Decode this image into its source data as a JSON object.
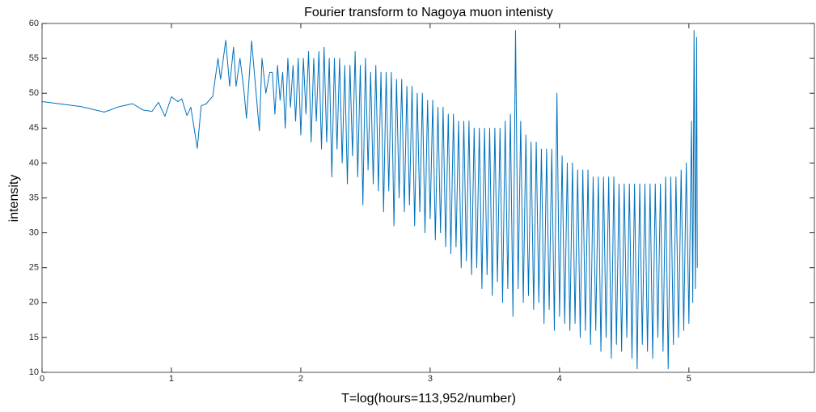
{
  "chart_data": {
    "type": "line",
    "title": "Fourier transform to Nagoya muon intenisty",
    "x_label": "T=log(hours=113,952/number)",
    "y_label": "intensity",
    "xlim": [
      0,
      5.97
    ],
    "ylim": [
      10,
      60
    ],
    "xticks": [
      0,
      1,
      2,
      3,
      4,
      5
    ],
    "yticks": [
      10,
      15,
      20,
      25,
      30,
      35,
      40,
      45,
      50,
      55,
      60
    ],
    "grid": false,
    "x": [
      0,
      0.3,
      0.48,
      0.6,
      0.7,
      0.78,
      0.85,
      0.9,
      0.95,
      1.0,
      1.05,
      1.08,
      1.12,
      1.15,
      1.2,
      1.23,
      1.27,
      1.32,
      1.36,
      1.38,
      1.42,
      1.45,
      1.48,
      1.5,
      1.53,
      1.56,
      1.58,
      1.6,
      1.62,
      1.65,
      1.68,
      1.7,
      1.73,
      1.76,
      1.78,
      1.8,
      1.82,
      1.84,
      1.86,
      1.88,
      1.9,
      1.92,
      1.94,
      1.96,
      1.98,
      2.0,
      2.02,
      2.04,
      2.06,
      2.08,
      2.1,
      2.12,
      2.14,
      2.16,
      2.18,
      2.2,
      2.22,
      2.24,
      2.26,
      2.28,
      2.3,
      2.32,
      2.34,
      2.36,
      2.38,
      2.4,
      2.42,
      2.44,
      2.46,
      2.48,
      2.5,
      2.52,
      2.54,
      2.56,
      2.58,
      2.6,
      2.62,
      2.64,
      2.66,
      2.68,
      2.7,
      2.72,
      2.74,
      2.76,
      2.78,
      2.8,
      2.82,
      2.84,
      2.86,
      2.88,
      2.9,
      2.92,
      2.94,
      2.96,
      2.98,
      3.0,
      3.02,
      3.04,
      3.06,
      3.08,
      3.1,
      3.12,
      3.14,
      3.16,
      3.18,
      3.2,
      3.22,
      3.24,
      3.26,
      3.28,
      3.3,
      3.32,
      3.34,
      3.36,
      3.38,
      3.4,
      3.42,
      3.44,
      3.46,
      3.48,
      3.5,
      3.52,
      3.54,
      3.56,
      3.58,
      3.6,
      3.62,
      3.64,
      3.66,
      3.68,
      3.7,
      3.72,
      3.74,
      3.76,
      3.78,
      3.8,
      3.82,
      3.84,
      3.86,
      3.88,
      3.9,
      3.92,
      3.94,
      3.96,
      3.98,
      4.0,
      4.02,
      4.04,
      4.06,
      4.08,
      4.1,
      4.12,
      4.14,
      4.16,
      4.18,
      4.2,
      4.22,
      4.24,
      4.26,
      4.28,
      4.3,
      4.32,
      4.34,
      4.36,
      4.38,
      4.4,
      4.42,
      4.44,
      4.46,
      4.48,
      4.5,
      4.52,
      4.54,
      4.56,
      4.58,
      4.6,
      4.62,
      4.64,
      4.66,
      4.68,
      4.7,
      4.72,
      4.74,
      4.76,
      4.78,
      4.8,
      4.82,
      4.84,
      4.86,
      4.88,
      4.9,
      4.92,
      4.94,
      4.96,
      4.98,
      5.0,
      5.02,
      5.03,
      5.04,
      5.05,
      5.06,
      5.065
    ],
    "series": [
      {
        "name": "intensity",
        "color": "#0072bd",
        "values": [
          48.8,
          48.1,
          47.3,
          48.1,
          48.5,
          47.6,
          47.4,
          48.7,
          46.7,
          49.5,
          48.8,
          49.2,
          46.8,
          48,
          42.1,
          48.2,
          48.5,
          49.6,
          55,
          52,
          57.6,
          51,
          56.6,
          51,
          55,
          50.5,
          46.4,
          52,
          57.5,
          51,
          44.6,
          55,
          50,
          53,
          53,
          47,
          54,
          49,
          53,
          45,
          55,
          48,
          54,
          46,
          55,
          44,
          55,
          47,
          56,
          43,
          55,
          46,
          56,
          42,
          56.6,
          43,
          55,
          38,
          55,
          42,
          55,
          40,
          54,
          37,
          54,
          41,
          56,
          38,
          54,
          34,
          55,
          39,
          53,
          37,
          54,
          36,
          53,
          33,
          53,
          36,
          53,
          31,
          52,
          35,
          52,
          33,
          51,
          34,
          51,
          31,
          50,
          33,
          50,
          30,
          49,
          32,
          49,
          29,
          48,
          30,
          48,
          28,
          47,
          27,
          47,
          28,
          46,
          25,
          46,
          26,
          46,
          24,
          45,
          25,
          45,
          22,
          45,
          24,
          45,
          21,
          45,
          23,
          45,
          20,
          46,
          22,
          47,
          18,
          59,
          22,
          46,
          20,
          44,
          21,
          43,
          19,
          43,
          20,
          42,
          17,
          42,
          19,
          42,
          16,
          50,
          18,
          41,
          17,
          40,
          16,
          40,
          17,
          39,
          15,
          39,
          16,
          39,
          14,
          38,
          16,
          38,
          13,
          38,
          15,
          38,
          12,
          38,
          14,
          37,
          13,
          37,
          15,
          37,
          12,
          37,
          10.5,
          37,
          14,
          37,
          13,
          37,
          12,
          37,
          15,
          37,
          13,
          38,
          10.5,
          38,
          14,
          38,
          15,
          39,
          16,
          40,
          17,
          46,
          20,
          59,
          22,
          58,
          25
        ]
      }
    ]
  }
}
